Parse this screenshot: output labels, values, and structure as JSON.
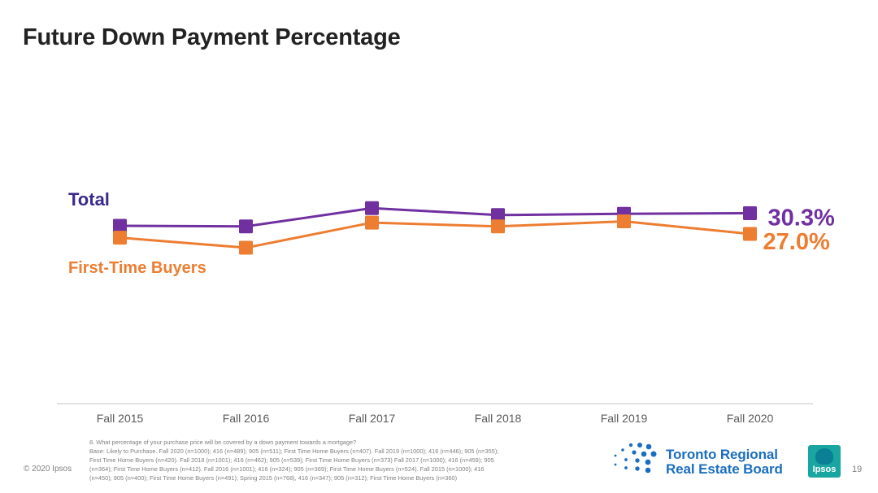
{
  "slide": {
    "title": "Future Down Payment Percentage",
    "copyright": "© 2020 Ipsos",
    "page_number": "19"
  },
  "footnote": {
    "lines": [
      "8. What percentage of your purchase price will be covered by a down payment towards a mortgage?",
      "Base: Likely to Purchase. Fall 2020 (n=1000); 416 (n=489); 905 (n=511); First Time Home Buyers (n=407). Fall 2019 (n=1000); 416 (n=446); 905 (n=355);",
      "First Time Home Buyers (n=420). Fall 2018 (n=1001); 416 (n=462); 905 (n=539); First Time Home Buyers (n=373) Fall 2017 (n=1000); 416 (n=459); 905",
      "(n=364); First Time Home Buyers (n=412). Fall 2016 (n=1001); 416 (n=324); 905 (n=369); First Time Home Buyers (n=524). Fall 2015 (n=1000); 416",
      "(n=450); 905 (n=400); First Time Home Buyers (n=491); Spring 2015 (n=768), 416 (n=347); 905 (n=312); First Time Home Buyers (n=360)"
    ]
  },
  "logos": {
    "trreb_line1": "Toronto Regional",
    "trreb_line2": "Real Estate Board",
    "ipsos": "Ipsos"
  },
  "colors": {
    "total": "#7030a0",
    "total_label": "#3a2a8c",
    "first_time": "#ed7d31",
    "axis": "#d9d9d9",
    "tick_text": "#595959"
  },
  "chart_data": {
    "type": "line",
    "categories": [
      "Fall 2015",
      "Fall 2016",
      "Fall 2017",
      "Fall 2018",
      "Fall 2019",
      "Fall 2020"
    ],
    "series": [
      {
        "name": "Total",
        "values": [
          28.3,
          28.2,
          31.1,
          30.0,
          30.2,
          30.3
        ],
        "end_label": "30.3%"
      },
      {
        "name": "First-Time Buyers",
        "values": [
          26.4,
          24.8,
          28.8,
          28.2,
          29.0,
          27.0
        ],
        "end_label": "27.0%"
      }
    ],
    "ylim": [
      0,
      50
    ],
    "grid": false,
    "legend": "inline labels at left"
  }
}
